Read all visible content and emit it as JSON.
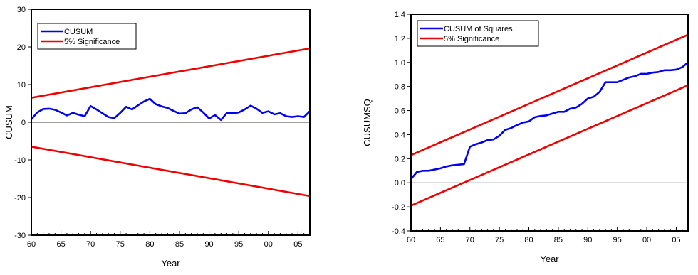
{
  "colors": {
    "cusum": "#0000ee",
    "significance": "#ee0000",
    "frame": "#000000",
    "zero_line": "#000000"
  },
  "chart_data": [
    {
      "type": "line",
      "xlabel": "Year",
      "ylabel": "CUSUM",
      "xlim": [
        1960,
        2007
      ],
      "ylim": [
        -30,
        30
      ],
      "xticks": [
        1960,
        1965,
        1970,
        1975,
        1980,
        1985,
        1990,
        1995,
        2000,
        2005
      ],
      "xtick_labels": [
        "60",
        "65",
        "70",
        "75",
        "80",
        "85",
        "90",
        "95",
        "00",
        "05"
      ],
      "yticks": [
        -30,
        -20,
        -10,
        0,
        10,
        20,
        30
      ],
      "ytick_labels": [
        "-30",
        "-20",
        "-10",
        "0",
        "10",
        "20",
        "30"
      ],
      "zero_line": true,
      "legend": {
        "position": "top-left"
      },
      "series": [
        {
          "name": "CUSUM",
          "color": "#0000ee",
          "x": [
            1960,
            1961,
            1962,
            1963,
            1964,
            1965,
            1966,
            1967,
            1968,
            1969,
            1970,
            1971,
            1972,
            1973,
            1974,
            1975,
            1976,
            1977,
            1978,
            1979,
            1980,
            1981,
            1982,
            1983,
            1984,
            1985,
            1986,
            1987,
            1988,
            1989,
            1990,
            1991,
            1992,
            1993,
            1994,
            1995,
            1996,
            1997,
            1998,
            1999,
            2000,
            2001,
            2002,
            2003,
            2004,
            2005,
            2006,
            2007
          ],
          "y": [
            0.8,
            2.6,
            3.5,
            3.6,
            3.3,
            2.6,
            1.8,
            2.5,
            2.0,
            1.6,
            4.3,
            3.4,
            2.4,
            1.4,
            1.1,
            2.5,
            4.1,
            3.4,
            4.5,
            5.5,
            6.2,
            4.8,
            4.2,
            3.8,
            3.0,
            2.3,
            2.4,
            3.4,
            4.0,
            2.6,
            1.0,
            1.9,
            0.6,
            2.5,
            2.4,
            2.6,
            3.4,
            4.4,
            3.6,
            2.5,
            2.9,
            2.1,
            2.4,
            1.6,
            1.4,
            1.6,
            1.4,
            2.9
          ]
        },
        {
          "name": "5% Significance",
          "color": "#ee0000",
          "x": [
            1960,
            2007
          ],
          "y": [
            6.5,
            19.6
          ]
        },
        {
          "color": "#ee0000",
          "x": [
            1960,
            2007
          ],
          "y": [
            -6.5,
            -19.6
          ]
        }
      ]
    },
    {
      "type": "line",
      "xlabel": "Year",
      "ylabel": "CUSUMSQ",
      "xlim": [
        1960,
        2007
      ],
      "ylim": [
        -0.4,
        1.4
      ],
      "xticks": [
        1960,
        1965,
        1970,
        1975,
        1980,
        1985,
        1990,
        1995,
        2000,
        2005
      ],
      "xtick_labels": [
        "60",
        "65",
        "70",
        "75",
        "80",
        "85",
        "90",
        "95",
        "00",
        "05"
      ],
      "yticks": [
        -0.4,
        -0.2,
        0.0,
        0.2,
        0.4,
        0.6,
        0.8,
        1.0,
        1.2,
        1.4
      ],
      "ytick_labels": [
        "-0.4",
        "-0.2",
        "0.0",
        "0.2",
        "0.4",
        "0.6",
        "0.8",
        "1.0",
        "1.2",
        "1.4"
      ],
      "zero_line": true,
      "legend": {
        "position": "top-left"
      },
      "series": [
        {
          "name": "CUSUM of Squares",
          "color": "#0000ee",
          "x": [
            1960,
            1961,
            1962,
            1963,
            1964,
            1965,
            1966,
            1967,
            1968,
            1969,
            1970,
            1971,
            1972,
            1973,
            1974,
            1975,
            1976,
            1977,
            1978,
            1979,
            1980,
            1981,
            1982,
            1983,
            1984,
            1985,
            1986,
            1987,
            1988,
            1989,
            1990,
            1991,
            1992,
            1993,
            1994,
            1995,
            1996,
            1997,
            1998,
            1999,
            2000,
            2001,
            2002,
            2003,
            2004,
            2005,
            2006,
            2007
          ],
          "y": [
            0.03,
            0.09,
            0.1,
            0.1,
            0.11,
            0.12,
            0.135,
            0.145,
            0.15,
            0.155,
            0.3,
            0.32,
            0.335,
            0.355,
            0.36,
            0.39,
            0.44,
            0.455,
            0.48,
            0.5,
            0.51,
            0.545,
            0.555,
            0.56,
            0.575,
            0.59,
            0.59,
            0.615,
            0.625,
            0.655,
            0.7,
            0.715,
            0.755,
            0.835,
            0.835,
            0.835,
            0.855,
            0.875,
            0.885,
            0.905,
            0.905,
            0.915,
            0.92,
            0.935,
            0.935,
            0.94,
            0.96,
            1.0
          ]
        },
        {
          "name": "5% Significance",
          "color": "#ee0000",
          "x": [
            1960,
            2007
          ],
          "y": [
            0.23,
            1.23
          ]
        },
        {
          "color": "#ee0000",
          "x": [
            1960,
            2007
          ],
          "y": [
            -0.19,
            0.81
          ]
        }
      ]
    }
  ]
}
